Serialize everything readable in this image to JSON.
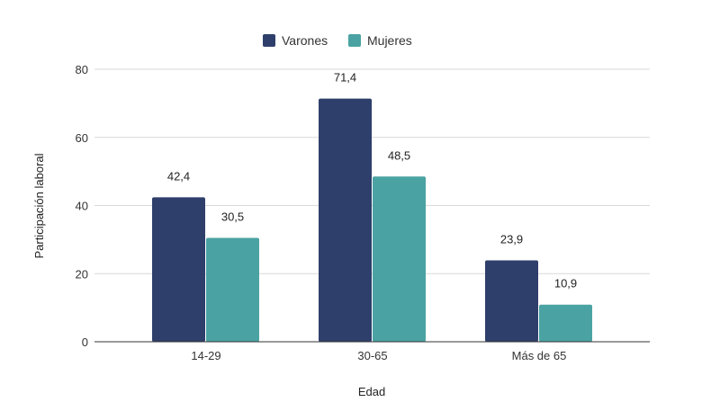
{
  "chart_data": {
    "type": "bar",
    "categories": [
      "14-29",
      "30-65",
      "Más de 65"
    ],
    "series": [
      {
        "name": "Varones",
        "color": "#2f3f6b",
        "values": [
          42.4,
          71.4,
          23.9
        ],
        "labels": [
          "42,4",
          "71,4",
          "23,9"
        ]
      },
      {
        "name": "Mujeres",
        "color": "#4aa3a2",
        "values": [
          30.5,
          48.5,
          10.9
        ],
        "labels": [
          "30,5",
          "48,5",
          "10,9"
        ]
      }
    ],
    "xlabel": "Edad",
    "ylabel": "Participación laboral",
    "ylim": [
      0,
      80
    ],
    "yticks": [
      0,
      20,
      40,
      60,
      80
    ],
    "ytick_labels": [
      "0",
      "20",
      "40",
      "60",
      "80"
    ],
    "grid": true,
    "legend_position": "top-center"
  }
}
